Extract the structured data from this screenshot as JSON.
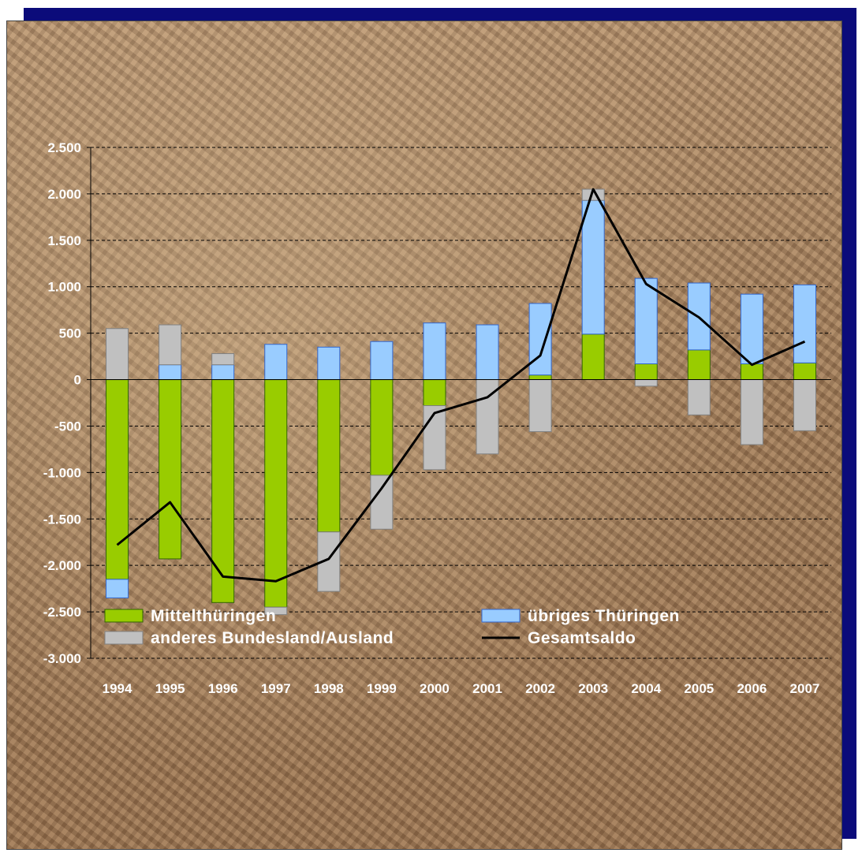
{
  "chart_data": {
    "type": "bar",
    "stacked": true,
    "categories": [
      "1994",
      "1995",
      "1996",
      "1997",
      "1998",
      "1999",
      "2000",
      "2001",
      "2002",
      "2003",
      "2004",
      "2005",
      "2006",
      "2007"
    ],
    "series": [
      {
        "name": "Mittelthüringen",
        "type": "bar",
        "color": "#99cc00",
        "values": [
          -2150,
          -1930,
          -2400,
          -2450,
          -1640,
          -1030,
          -280,
          0,
          50,
          490,
          170,
          320,
          170,
          180
        ]
      },
      {
        "name": "übriges Thüringen",
        "type": "bar",
        "color": "#99ccff",
        "values": [
          -200,
          160,
          160,
          380,
          350,
          410,
          610,
          590,
          770,
          1440,
          920,
          720,
          750,
          840
        ]
      },
      {
        "name": "anderes Bundesland/Ausland",
        "type": "bar",
        "color": "#c0c0c0",
        "values": [
          550,
          430,
          120,
          -80,
          -640,
          -580,
          -690,
          -800,
          -560,
          120,
          -70,
          -380,
          -700,
          -550
        ]
      },
      {
        "name": "Gesamtsaldo",
        "type": "line",
        "color": "#000000",
        "values": [
          -1780,
          -1320,
          -2120,
          -2170,
          -1930,
          -1170,
          -360,
          -190,
          260,
          2050,
          1030,
          670,
          160,
          410
        ]
      }
    ],
    "ylim": [
      -3000,
      2500
    ],
    "yticks": [
      -3000,
      -2500,
      -2000,
      -1500,
      -1000,
      -500,
      0,
      500,
      1000,
      1500,
      2000,
      2500
    ],
    "ytick_labels": [
      "-3.000",
      "-2.500",
      "-2.000",
      "-1.500",
      "-1.000",
      "-500",
      "0",
      "500",
      "1.000",
      "1.500",
      "2.000",
      "2.500"
    ],
    "grid": true,
    "legend_position": "bottom"
  },
  "legend": {
    "mittel": "Mittelthüringen",
    "uebrig": "übriges Thüringen",
    "anderes": "anderes Bundesland/Ausland",
    "gesamt": "Gesamtsaldo"
  }
}
